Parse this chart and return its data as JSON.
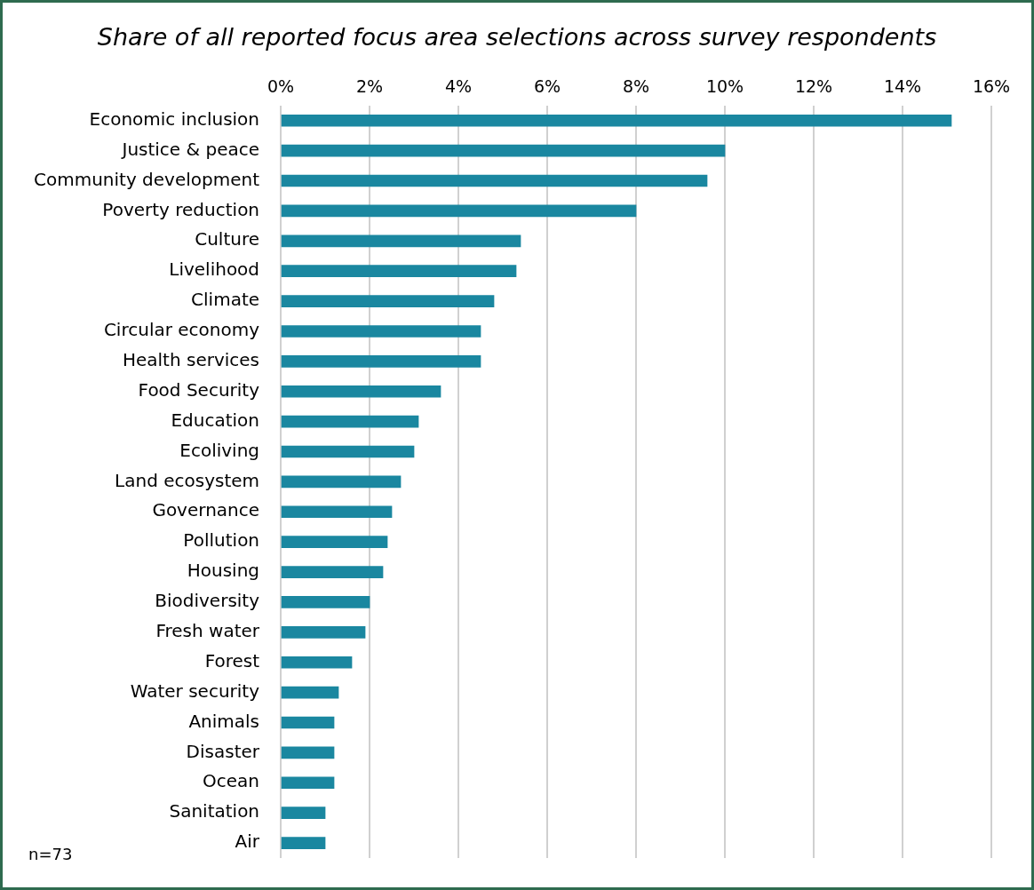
{
  "chart_data": {
    "type": "bar",
    "orientation": "horizontal",
    "title": "Share of all reported focus area selections across survey respondents",
    "categories": [
      "Economic inclusion",
      "Justice & peace",
      "Community development",
      "Poverty reduction",
      "Culture",
      "Livelihood",
      "Climate",
      "Circular economy",
      "Health services",
      "Food Security",
      "Education",
      "Ecoliving",
      "Land ecosystem",
      "Governance",
      "Pollution",
      "Housing",
      "Biodiversity",
      "Fresh water",
      "Forest",
      "Water security",
      "Animals",
      "Disaster",
      "Ocean",
      "Sanitation",
      "Air"
    ],
    "values": [
      15.1,
      10.0,
      9.6,
      8.0,
      5.4,
      5.3,
      4.8,
      4.5,
      4.5,
      3.6,
      3.1,
      3.0,
      2.7,
      2.5,
      2.4,
      2.3,
      2.0,
      1.9,
      1.6,
      1.3,
      1.2,
      1.2,
      1.2,
      1.0,
      1.0
    ],
    "color": "#1a87a0",
    "xlim": [
      0,
      16
    ],
    "xticks": [
      {
        "value": 0,
        "label": "0%"
      },
      {
        "value": 2,
        "label": "2%"
      },
      {
        "value": 4,
        "label": "4%"
      },
      {
        "value": 6,
        "label": "6%"
      },
      {
        "value": 8,
        "label": "8%"
      },
      {
        "value": 10,
        "label": "10%"
      },
      {
        "value": 12,
        "label": "12%"
      },
      {
        "value": 14,
        "label": "14%"
      },
      {
        "value": 16,
        "label": "16%"
      }
    ],
    "grid": "x",
    "annotations": [
      "n=73"
    ]
  }
}
